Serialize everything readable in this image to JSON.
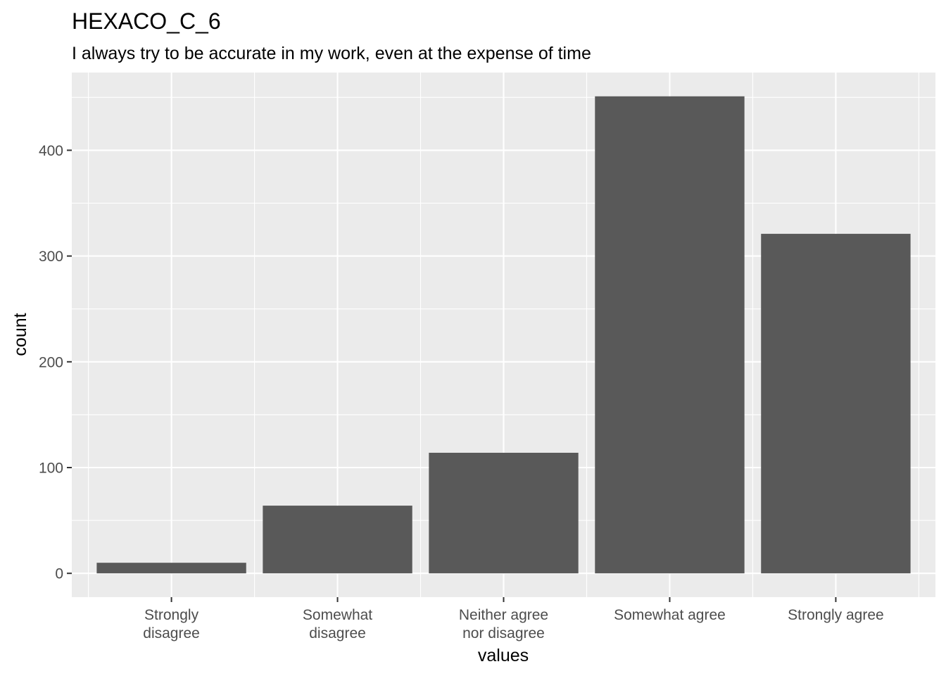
{
  "chart_data": {
    "type": "bar",
    "title": "HEXACO_C_6",
    "subtitle": "I always try to be accurate in my work, even at the expense of time",
    "xlabel": "values",
    "ylabel": "count",
    "categories": [
      [
        "Strongly",
        "disagree"
      ],
      [
        "Somewhat",
        "disagree"
      ],
      [
        "Neither agree",
        "nor disagree"
      ],
      [
        "Somewhat agree"
      ],
      [
        "Strongly agree"
      ]
    ],
    "values": [
      10,
      64,
      114,
      451,
      321
    ],
    "ylim": [
      -22.5,
      473.5
    ],
    "yticks": [
      0,
      100,
      200,
      300,
      400
    ],
    "ytick_labels": [
      "0",
      "100",
      "200",
      "300",
      "400"
    ],
    "grid": true,
    "legend": "none",
    "colors": {
      "panel": "#ebebeb",
      "grid": "#ffffff",
      "bar": "#595959",
      "tick_text": "#4d4d4d",
      "tick_mark": "#333333"
    }
  }
}
